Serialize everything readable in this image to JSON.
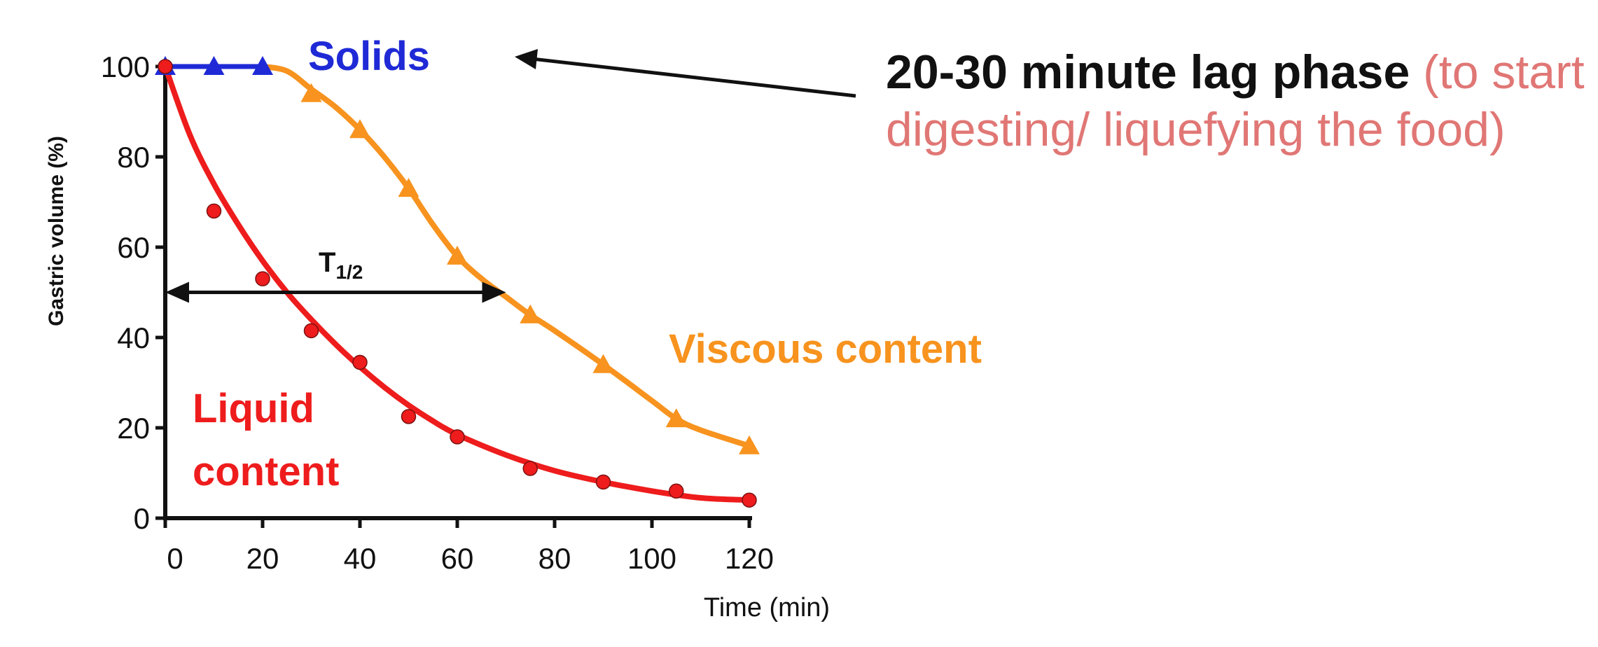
{
  "chart_data": {
    "type": "line",
    "xlabel": "Time (min)",
    "ylabel": "Gastric volume (%)",
    "xlim": [
      0,
      120
    ],
    "ylim": [
      0,
      100
    ],
    "x_ticks": [
      "0",
      "20",
      "40",
      "60",
      "80",
      "100",
      "120"
    ],
    "y_ticks": [
      "0",
      "20",
      "40",
      "60",
      "80",
      "100"
    ],
    "grid": false,
    "colors": {
      "solids": "#1f2ad6",
      "viscous": "#f7931e",
      "liquid": "#ee1c1c",
      "annotation_soft": "#e07775"
    },
    "series": [
      {
        "name": "Solids",
        "color": "#1f2ad6",
        "marker": "triangle",
        "points": [
          [
            0,
            100
          ],
          [
            10,
            100
          ],
          [
            20,
            100
          ]
        ]
      },
      {
        "name": "Viscous content",
        "color": "#f7931e",
        "marker": "triangle",
        "points": [
          [
            30,
            94
          ],
          [
            40,
            86
          ],
          [
            50,
            73
          ],
          [
            60,
            58
          ],
          [
            75,
            45
          ],
          [
            90,
            34
          ],
          [
            105,
            22
          ],
          [
            120,
            16
          ]
        ],
        "curve": [
          [
            20,
            100
          ],
          [
            25,
            99
          ],
          [
            30,
            95
          ],
          [
            35,
            91
          ],
          [
            40,
            86
          ],
          [
            45,
            80
          ],
          [
            50,
            73
          ],
          [
            55,
            65
          ],
          [
            60,
            58
          ],
          [
            65,
            53
          ],
          [
            70,
            49
          ],
          [
            75,
            45
          ],
          [
            80,
            41.5
          ],
          [
            90,
            34
          ],
          [
            100,
            26
          ],
          [
            105,
            22
          ],
          [
            110,
            19.5
          ],
          [
            120,
            16
          ]
        ]
      },
      {
        "name": "Liquid content",
        "color": "#ee1c1c",
        "marker": "circle",
        "points": [
          [
            0,
            100
          ],
          [
            10,
            68
          ],
          [
            20,
            53
          ],
          [
            30,
            41.5
          ],
          [
            40,
            34.5
          ],
          [
            50,
            22.5
          ],
          [
            60,
            18
          ],
          [
            75,
            11
          ],
          [
            90,
            8
          ],
          [
            105,
            6
          ],
          [
            120,
            4
          ]
        ],
        "curve": [
          [
            0,
            100
          ],
          [
            5,
            85
          ],
          [
            10,
            74
          ],
          [
            15,
            65
          ],
          [
            20,
            57
          ],
          [
            25,
            50
          ],
          [
            30,
            44
          ],
          [
            35,
            38.5
          ],
          [
            40,
            33.5
          ],
          [
            45,
            29
          ],
          [
            50,
            25
          ],
          [
            55,
            21.5
          ],
          [
            60,
            18.5
          ],
          [
            70,
            14
          ],
          [
            80,
            10.5
          ],
          [
            90,
            8
          ],
          [
            100,
            6
          ],
          [
            110,
            4.5
          ],
          [
            120,
            4
          ]
        ]
      }
    ],
    "labels": {
      "solids": "Solids",
      "viscous": "Viscous content",
      "liquid_line1": "Liquid",
      "liquid_line2": "content"
    },
    "half_time": {
      "label_main": "T",
      "label_sub": "1/2",
      "x_start": 0,
      "x_end": 70,
      "y": 50
    },
    "annotation": {
      "strong": "20-30 minute lag phase",
      "soft": " (to start digesting/ liquefying the food)"
    }
  }
}
